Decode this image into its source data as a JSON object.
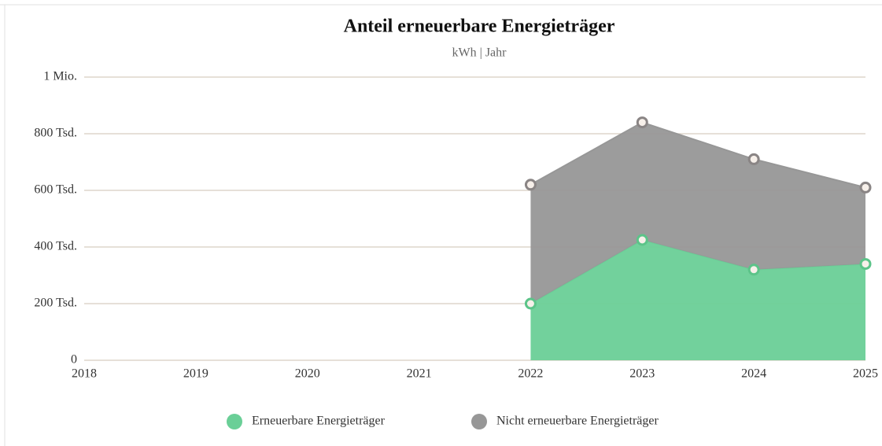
{
  "chart_data": {
    "type": "stacked-area",
    "title": "Anteil erneuerbare Energieträger",
    "subtitle": "kWh | Jahr",
    "x": [
      2022,
      2023,
      2024,
      2025
    ],
    "xlim": [
      2018,
      2025
    ],
    "xticks": [
      2018,
      2019,
      2020,
      2021,
      2022,
      2023,
      2024,
      2025
    ],
    "ylim": [
      0,
      1000000
    ],
    "yticks": [
      0,
      {
        "value": 200000,
        "label": "200 Tsd."
      },
      {
        "value": 400000,
        "label": "400 Tsd."
      },
      {
        "value": 600000,
        "label": "600 Tsd."
      },
      {
        "value": 800000,
        "label": "800 Tsd."
      },
      {
        "value": 1000000,
        "label": "1 Mio."
      }
    ],
    "grid": true,
    "legend": "bottom",
    "series": [
      {
        "name": "Erneuerbare Energieträger",
        "color": "#6acf97",
        "values": [
          200000,
          425000,
          320000,
          340000
        ]
      },
      {
        "name": "Nicht erneuerbare Energieträger",
        "color": "#979797",
        "values": [
          420000,
          415000,
          390000,
          270000
        ]
      }
    ]
  }
}
